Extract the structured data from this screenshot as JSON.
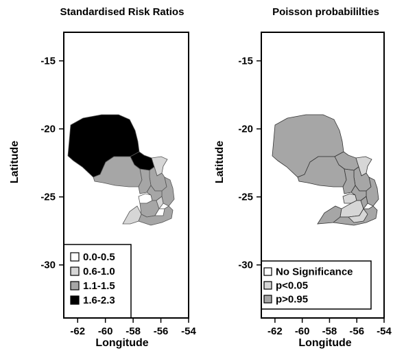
{
  "chart_data": [
    {
      "type": "choropleth",
      "title": "Standardised Risk Ratios",
      "xlabel": "Longitude",
      "ylabel": "Latitude",
      "xlim": [
        -63,
        -54
      ],
      "ylim": [
        -33.9,
        -12.9
      ],
      "xticks": [
        -62,
        -60,
        -58,
        -56,
        -54
      ],
      "yticks": [
        -15,
        -20,
        -25,
        -30
      ],
      "legend_position": "bottom-left",
      "legend": [
        {
          "label": "0.0-0.5",
          "color": "#ffffff"
        },
        {
          "label": "0.6-1.0",
          "color": "#d6d6d6"
        },
        {
          "label": "1.1-1.5",
          "color": "#a6a6a6"
        },
        {
          "label": "1.6-2.3",
          "color": "#000000"
        }
      ]
    },
    {
      "type": "choropleth",
      "title": "Poisson probabililties",
      "xlabel": "Longitude",
      "ylabel": "Latitude",
      "xlim": [
        -63,
        -54
      ],
      "ylim": [
        -33.9,
        -12.9
      ],
      "xticks": [
        -62,
        -60,
        -58,
        -56,
        -54
      ],
      "yticks": [
        -15,
        -20,
        -25,
        -30
      ],
      "legend_position": "bottom-left",
      "legend": [
        {
          "label": "No Significance",
          "color": "#ffffff"
        },
        {
          "label": "p<0.05",
          "color": "#d6d6d6"
        },
        {
          "label": "p>0.95",
          "color": "#a6a6a6"
        }
      ]
    }
  ]
}
